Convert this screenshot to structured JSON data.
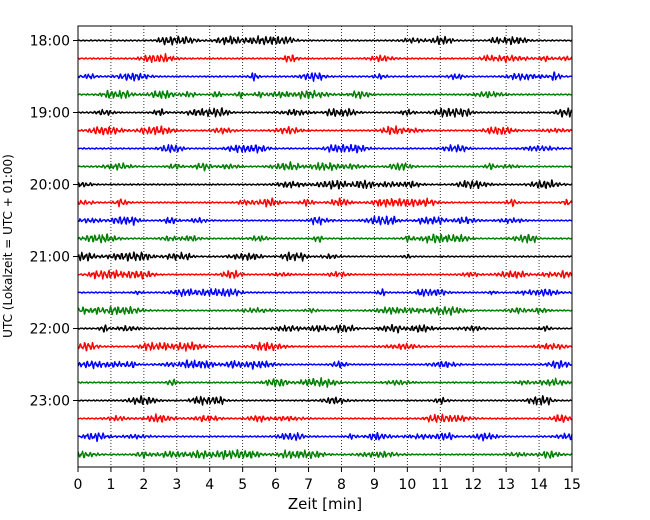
{
  "chart_data": {
    "type": "line",
    "chart_style": "helicorder",
    "xlabel": "Zeit  [min]",
    "ylabel": "UTC (Lokalzeit = UTC + 01:00)",
    "xlim": [
      0,
      15
    ],
    "x_ticks": [
      0,
      1,
      2,
      3,
      4,
      5,
      6,
      7,
      8,
      9,
      10,
      11,
      12,
      13,
      14,
      15
    ],
    "x_tick_labels": [
      "0",
      "1",
      "2",
      "3",
      "4",
      "5",
      "6",
      "7",
      "8",
      "9",
      "10",
      "11",
      "12",
      "13",
      "14",
      "15"
    ],
    "y_tick_labels": [
      "18:00",
      "19:00",
      "20:00",
      "21:00",
      "22:00",
      "23:00"
    ],
    "vertical_grid": true,
    "trace_interval_minutes": 15,
    "trace_color_cycle": [
      "#000000",
      "#ff0000",
      "#0000ff",
      "#008000"
    ],
    "trace_start_times": [
      "18:00",
      "18:15",
      "18:30",
      "18:45",
      "19:00",
      "19:15",
      "19:30",
      "19:45",
      "20:00",
      "20:15",
      "20:30",
      "20:45",
      "21:00",
      "21:15",
      "21:30",
      "21:45",
      "22:00",
      "22:15",
      "22:30",
      "22:45",
      "23:00",
      "23:15",
      "23:30",
      "23:45"
    ]
  }
}
